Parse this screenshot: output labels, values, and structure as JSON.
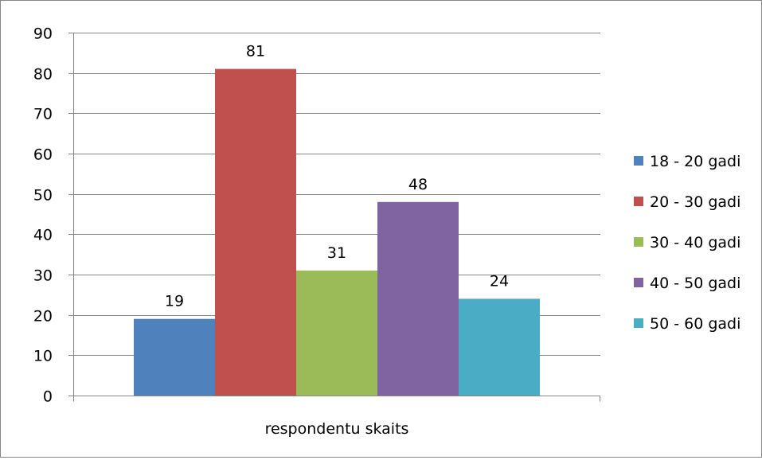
{
  "chart_data": {
    "type": "bar",
    "title": "",
    "xlabel": "",
    "ylabel": "",
    "categories": [
      "respondentu skaits"
    ],
    "series": [
      {
        "name": "18 - 20 gadi",
        "values": [
          19
        ],
        "color": "#4F81BD"
      },
      {
        "name": "20 - 30 gadi",
        "values": [
          81
        ],
        "color": "#C0504D"
      },
      {
        "name": "30 - 40 gadi",
        "values": [
          31
        ],
        "color": "#9BBB59"
      },
      {
        "name": "40 - 50 gadi",
        "values": [
          48
        ],
        "color": "#8064A2"
      },
      {
        "name": "50 - 60 gadi",
        "values": [
          24
        ],
        "color": "#4BACC6"
      }
    ],
    "ylim": [
      0,
      90
    ],
    "yticks": [
      0,
      10,
      20,
      30,
      40,
      50,
      60,
      70,
      80,
      90
    ],
    "grid": true,
    "legend": "right",
    "data_labels": true
  }
}
